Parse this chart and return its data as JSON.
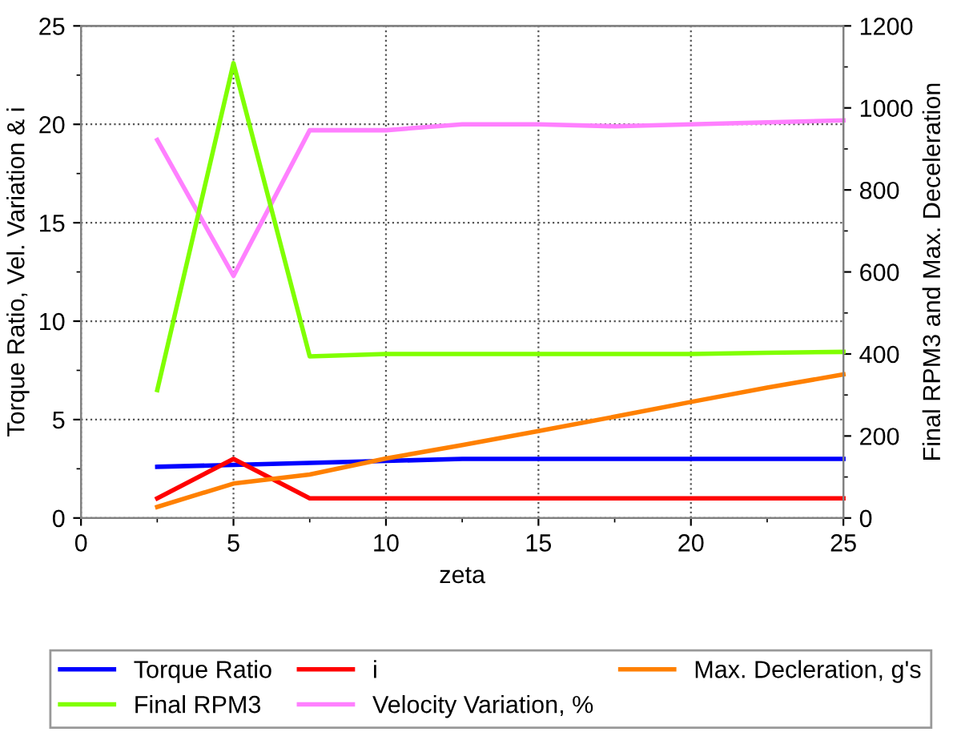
{
  "chart_data": {
    "type": "line",
    "xlabel": "zeta",
    "ylabel": "Torque Ratio, Vel. Variation & i",
    "y2label": "Final RPM3 and Max. Deceleration",
    "x": [
      2.5,
      5,
      7.5,
      10,
      12.5,
      15,
      17.5,
      20,
      22.5,
      25
    ],
    "series": [
      {
        "name": "Torque Ratio",
        "color": "#0000ff",
        "values": [
          2.6,
          2.7,
          2.8,
          2.9,
          3.0,
          3.0,
          3.0,
          3.0,
          3.0,
          3.0
        ]
      },
      {
        "name": "Final RPM3",
        "color": "#80ff00",
        "axis": "y2",
        "values": [
          312,
          1109,
          394,
          400,
          400,
          400,
          400,
          400,
          403,
          405
        ]
      },
      {
        "name": "i",
        "color": "#ff0000",
        "values": [
          1,
          3,
          1,
          1,
          1,
          1,
          1,
          1,
          1,
          1
        ]
      },
      {
        "name": "Velocity Variation, %",
        "color": "#ff80ff",
        "values": [
          19.2,
          12.3,
          19.7,
          19.7,
          20.0,
          20.0,
          19.9,
          20.0,
          20.1,
          20.2
        ]
      },
      {
        "name": "Max. Decleration, g's",
        "color": "#ff8000",
        "axis": "y2",
        "values": [
          27,
          84,
          106,
          145,
          178,
          212,
          247,
          283,
          318,
          350
        ]
      }
    ],
    "xlim": [
      0,
      25
    ],
    "xticks": [
      0,
      {
        "value": 2.5,
        "label": null
      },
      5,
      {
        "value": 7.5,
        "label": null
      },
      10,
      {
        "value": 12.5,
        "label": null
      },
      15,
      {
        "value": 17.5,
        "label": null
      },
      20,
      {
        "value": 22.5,
        "label": null
      },
      25
    ],
    "ylim": [
      0,
      25
    ],
    "yticks": [
      0,
      {
        "value": 2.5,
        "label": null
      },
      5,
      {
        "value": 7.5,
        "label": null
      },
      10,
      {
        "value": 12.5,
        "label": null
      },
      15,
      {
        "value": 17.5,
        "label": null
      },
      20,
      {
        "value": 22.5,
        "label": null
      },
      25
    ],
    "y2lim": [
      0,
      1200
    ],
    "y2ticks": [
      0,
      {
        "value": 100,
        "label": null
      },
      200,
      {
        "value": 300,
        "label": null
      },
      400,
      {
        "value": 500,
        "label": null
      },
      600,
      {
        "value": 700,
        "label": null
      },
      800,
      {
        "value": 900,
        "label": null
      },
      1000,
      {
        "value": 1100,
        "label": null
      },
      1200
    ],
    "grid": true,
    "legend": "bottom",
    "marker": "none",
    "line_style": "solid"
  }
}
